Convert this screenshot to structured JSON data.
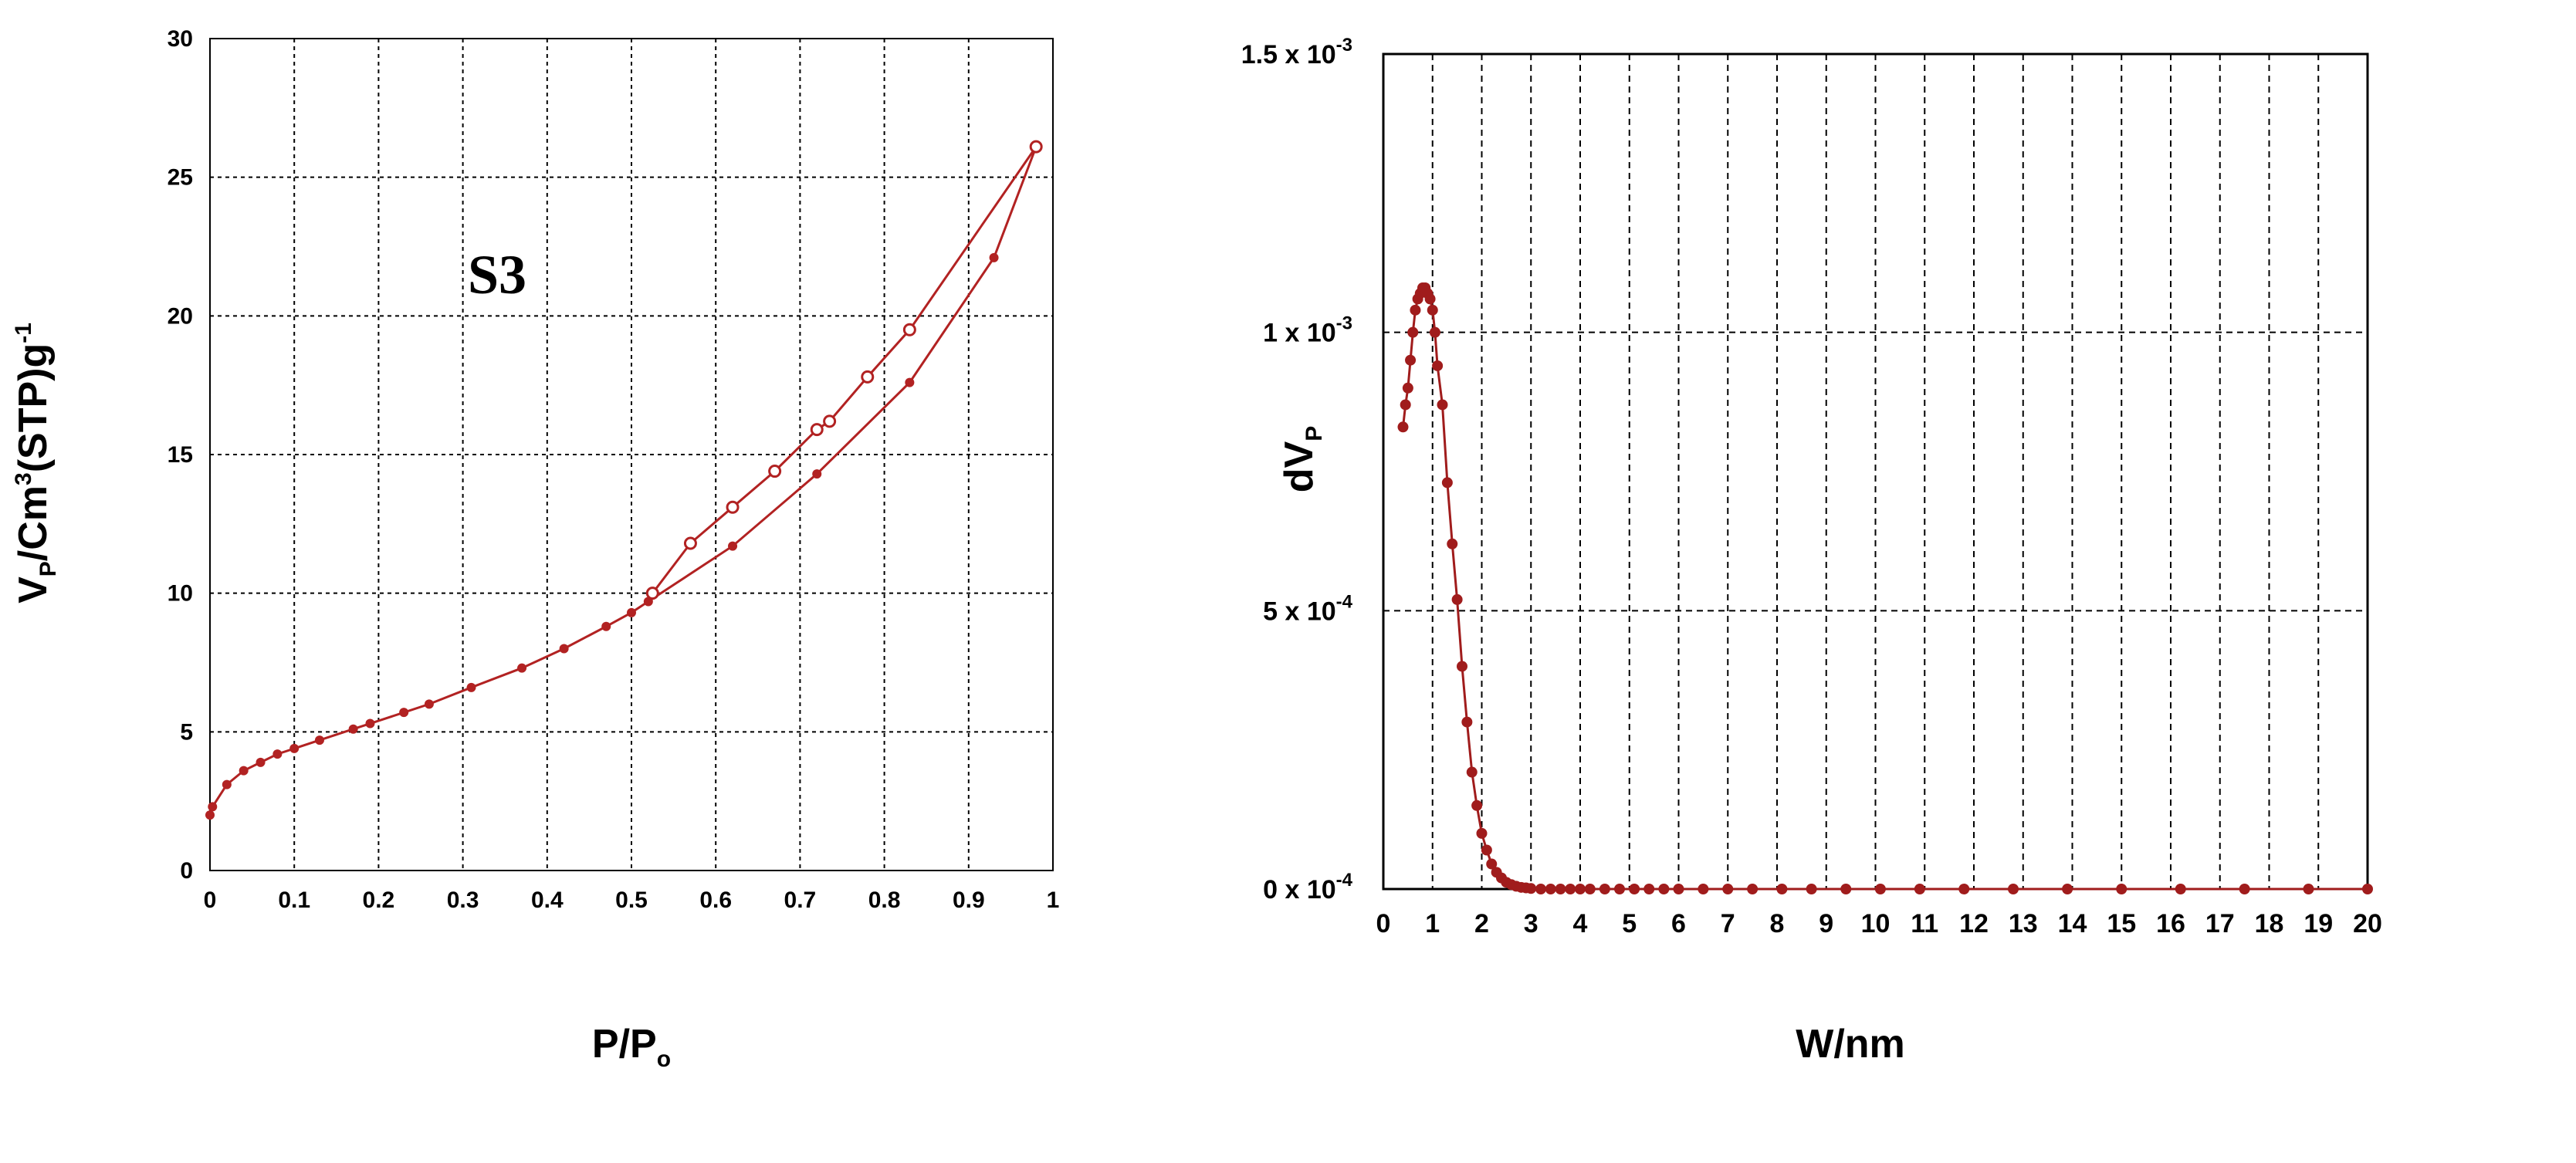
{
  "chart_data": [
    {
      "type": "line",
      "annotation": "S3",
      "xlabel": {
        "main": "P/P",
        "sub": "o"
      },
      "ylabel": {
        "main": "V",
        "sub": "P",
        "mid": "/Cm",
        "sup": "3",
        "tail": "(STP)g",
        "sup2": "-1"
      },
      "xlim": [
        0,
        1
      ],
      "ylim": [
        0,
        30
      ],
      "xticks": [
        "0",
        "0.1",
        "0.2",
        "0.3",
        "0.4",
        "0.5",
        "0.6",
        "0.7",
        "0.8",
        "0.9",
        "1"
      ],
      "yticks": [
        "0",
        "5",
        "10",
        "15",
        "20",
        "25",
        "30"
      ],
      "grid": true,
      "color": "#b22222",
      "series": [
        {
          "marker": "filled",
          "x": [
            0.0,
            0.003,
            0.02,
            0.04,
            0.06,
            0.08,
            0.1,
            0.13,
            0.17,
            0.19,
            0.23,
            0.26,
            0.31,
            0.37,
            0.42,
            0.47,
            0.5,
            0.52,
            0.62,
            0.72,
            0.83,
            0.93,
            0.98
          ],
          "y": [
            2.0,
            2.3,
            3.1,
            3.6,
            3.9,
            4.2,
            4.4,
            4.7,
            5.1,
            5.3,
            5.7,
            6.0,
            6.6,
            7.3,
            8.0,
            8.8,
            9.3,
            9.7,
            11.7,
            14.3,
            17.6,
            22.1,
            26.1
          ]
        },
        {
          "marker": "open",
          "x": [
            0.525,
            0.57,
            0.62,
            0.67,
            0.72,
            0.735,
            0.78,
            0.83,
            0.98
          ],
          "y": [
            10.0,
            11.8,
            13.1,
            14.4,
            15.9,
            16.2,
            17.8,
            19.5,
            26.1
          ]
        }
      ]
    },
    {
      "type": "line",
      "xlabel": "W/nm",
      "ylabel": {
        "main": "dV",
        "sub": "P"
      },
      "xlim": [
        0,
        20
      ],
      "ylim": [
        0,
        0.0015
      ],
      "xticks": [
        "0",
        "1",
        "2",
        "3",
        "4",
        "5",
        "6",
        "7",
        "8",
        "9",
        "10",
        "11",
        "12",
        "13",
        "14",
        "15",
        "16",
        "17",
        "18",
        "19",
        "20"
      ],
      "yticks": [
        {
          "value": 0,
          "base": "0 x 10",
          "exp": "-4"
        },
        {
          "value": 0.0005,
          "base": "5 x 10",
          "exp": "-4"
        },
        {
          "value": 0.001,
          "base": "1 x 10",
          "exp": "-3"
        },
        {
          "value": 0.0015,
          "base": "1.5 x 10",
          "exp": "-3"
        }
      ],
      "grid": true,
      "color": "#a01c1c",
      "series": [
        {
          "marker": "filled",
          "x": [
            0.4,
            0.45,
            0.5,
            0.55,
            0.6,
            0.65,
            0.7,
            0.75,
            0.8,
            0.85,
            0.9,
            0.95,
            1.0,
            1.05,
            1.1,
            1.2,
            1.3,
            1.4,
            1.5,
            1.6,
            1.7,
            1.8,
            1.9,
            2.0,
            2.1,
            2.2,
            2.3,
            2.4,
            2.5,
            2.6,
            2.7,
            2.8,
            2.9,
            3.0,
            3.2,
            3.4,
            3.6,
            3.8,
            4.0,
            4.2,
            4.5,
            4.8,
            5.1,
            5.4,
            5.7,
            6.0,
            6.5,
            7.0,
            7.5,
            8.1,
            8.7,
            9.4,
            10.1,
            10.9,
            11.8,
            12.8,
            13.9,
            15.0,
            16.2,
            17.5,
            18.8,
            20.0
          ],
          "y": [
            0.00083,
            0.00087,
            0.0009,
            0.00095,
            0.001,
            0.00104,
            0.00106,
            0.00107,
            0.00108,
            0.00108,
            0.00107,
            0.00106,
            0.00104,
            0.001,
            0.00094,
            0.00087,
            0.00073,
            0.00062,
            0.00052,
            0.0004,
            0.0003,
            0.00021,
            0.00015,
            0.0001,
            7e-05,
            4.5e-05,
            3e-05,
            2e-05,
            1.2e-05,
            8e-06,
            5e-06,
            3e-06,
            2e-06,
            1e-06,
            0,
            0,
            0,
            0,
            0,
            0,
            0,
            0,
            0,
            0,
            0,
            0,
            0,
            0,
            0,
            0,
            0,
            0,
            0,
            0,
            0,
            0,
            0,
            0,
            0,
            0,
            0,
            0
          ]
        }
      ]
    }
  ]
}
